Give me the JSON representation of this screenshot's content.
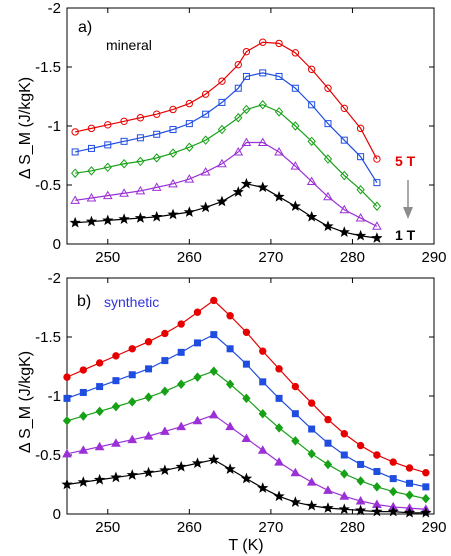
{
  "chart_data": [
    {
      "type": "line",
      "panel_label": "a)",
      "annotation": "mineral",
      "field_high": "5 T",
      "field_low": "1 T",
      "xlabel": "",
      "ylabel": "Δ S_M (J/kgK)",
      "xlim": [
        245,
        290
      ],
      "ylim": [
        0,
        -2
      ],
      "y_reversed": true,
      "xticks": [
        "250",
        "260",
        "270",
        "280",
        "290"
      ],
      "yticks": [
        "0",
        "-0.5",
        "-1",
        "-1.5",
        "-2"
      ],
      "x": [
        246,
        248,
        250,
        252,
        254,
        256,
        258,
        260,
        262,
        264,
        266,
        267,
        269,
        271,
        273,
        275,
        277,
        279,
        281,
        283
      ],
      "marker_fill": "open",
      "series": [
        {
          "color": "#e60000",
          "marker": "circle",
          "values": [
            -0.95,
            -0.98,
            -1.01,
            -1.04,
            -1.07,
            -1.1,
            -1.14,
            -1.19,
            -1.27,
            -1.38,
            -1.52,
            -1.63,
            -1.71,
            -1.7,
            -1.62,
            -1.48,
            -1.32,
            -1.15,
            -0.98,
            -0.72
          ]
        },
        {
          "color": "#1f4de0",
          "marker": "square",
          "values": [
            -0.78,
            -0.81,
            -0.84,
            -0.87,
            -0.9,
            -0.93,
            -0.97,
            -1.02,
            -1.1,
            -1.2,
            -1.32,
            -1.42,
            -1.45,
            -1.42,
            -1.32,
            -1.18,
            -1.02,
            -0.88,
            -0.74,
            -0.52
          ]
        },
        {
          "color": "#17a117",
          "marker": "diamond",
          "values": [
            -0.6,
            -0.62,
            -0.65,
            -0.68,
            -0.7,
            -0.73,
            -0.77,
            -0.82,
            -0.88,
            -0.97,
            -1.07,
            -1.14,
            -1.18,
            -1.12,
            -1.0,
            -0.87,
            -0.72,
            -0.58,
            -0.46,
            -0.32
          ]
        },
        {
          "color": "#9b30d6",
          "marker": "triangle",
          "values": [
            -0.37,
            -0.39,
            -0.41,
            -0.43,
            -0.45,
            -0.48,
            -0.51,
            -0.55,
            -0.61,
            -0.68,
            -0.78,
            -0.86,
            -0.86,
            -0.78,
            -0.66,
            -0.53,
            -0.4,
            -0.29,
            -0.22,
            -0.15
          ]
        },
        {
          "color": "#000000",
          "marker": "star",
          "values": [
            -0.18,
            -0.19,
            -0.2,
            -0.21,
            -0.22,
            -0.23,
            -0.25,
            -0.27,
            -0.31,
            -0.36,
            -0.44,
            -0.51,
            -0.48,
            -0.4,
            -0.32,
            -0.23,
            -0.15,
            -0.1,
            -0.07,
            -0.05
          ]
        }
      ]
    },
    {
      "type": "line",
      "panel_label": "b)",
      "annotation": "synthetic",
      "xlabel": "T (K)",
      "ylabel": "Δ S_M (J/kgK)",
      "xlim": [
        245,
        290
      ],
      "ylim": [
        0,
        -2
      ],
      "y_reversed": true,
      "xticks": [
        "250",
        "260",
        "270",
        "280",
        "290"
      ],
      "yticks": [
        "0",
        "-0.5",
        "-1",
        "-1.5",
        "-2"
      ],
      "x": [
        245,
        247,
        249,
        251,
        253,
        255,
        257,
        259,
        261,
        263,
        265,
        267,
        269,
        271,
        273,
        275,
        277,
        279,
        281,
        283,
        285,
        287,
        289
      ],
      "marker_fill": "filled",
      "series": [
        {
          "color": "#e60000",
          "marker": "circle",
          "values": [
            -1.16,
            -1.22,
            -1.28,
            -1.34,
            -1.4,
            -1.46,
            -1.53,
            -1.61,
            -1.71,
            -1.81,
            -1.68,
            -1.54,
            -1.38,
            -1.23,
            -1.08,
            -0.94,
            -0.8,
            -0.68,
            -0.58,
            -0.5,
            -0.44,
            -0.39,
            -0.35
          ]
        },
        {
          "color": "#1f4de0",
          "marker": "square",
          "values": [
            -0.98,
            -1.03,
            -1.08,
            -1.13,
            -1.18,
            -1.23,
            -1.3,
            -1.37,
            -1.45,
            -1.52,
            -1.4,
            -1.27,
            -1.12,
            -0.98,
            -0.85,
            -0.72,
            -0.6,
            -0.5,
            -0.42,
            -0.36,
            -0.3,
            -0.26,
            -0.23
          ]
        },
        {
          "color": "#17a117",
          "marker": "diamond",
          "values": [
            -0.79,
            -0.83,
            -0.87,
            -0.91,
            -0.95,
            -0.99,
            -1.04,
            -1.1,
            -1.16,
            -1.21,
            -1.1,
            -0.98,
            -0.85,
            -0.73,
            -0.62,
            -0.51,
            -0.42,
            -0.34,
            -0.28,
            -0.23,
            -0.19,
            -0.16,
            -0.13
          ]
        },
        {
          "color": "#9b30d6",
          "marker": "triangle",
          "values": [
            -0.51,
            -0.54,
            -0.57,
            -0.6,
            -0.63,
            -0.66,
            -0.7,
            -0.74,
            -0.79,
            -0.84,
            -0.74,
            -0.64,
            -0.54,
            -0.44,
            -0.35,
            -0.27,
            -0.2,
            -0.15,
            -0.11,
            -0.08,
            -0.06,
            -0.05,
            -0.04
          ]
        },
        {
          "color": "#000000",
          "marker": "star",
          "values": [
            -0.25,
            -0.27,
            -0.29,
            -0.31,
            -0.33,
            -0.35,
            -0.37,
            -0.4,
            -0.43,
            -0.46,
            -0.38,
            -0.3,
            -0.22,
            -0.15,
            -0.1,
            -0.07,
            -0.05,
            -0.04,
            -0.03,
            -0.02,
            -0.02,
            -0.01,
            -0.01
          ]
        }
      ]
    }
  ]
}
